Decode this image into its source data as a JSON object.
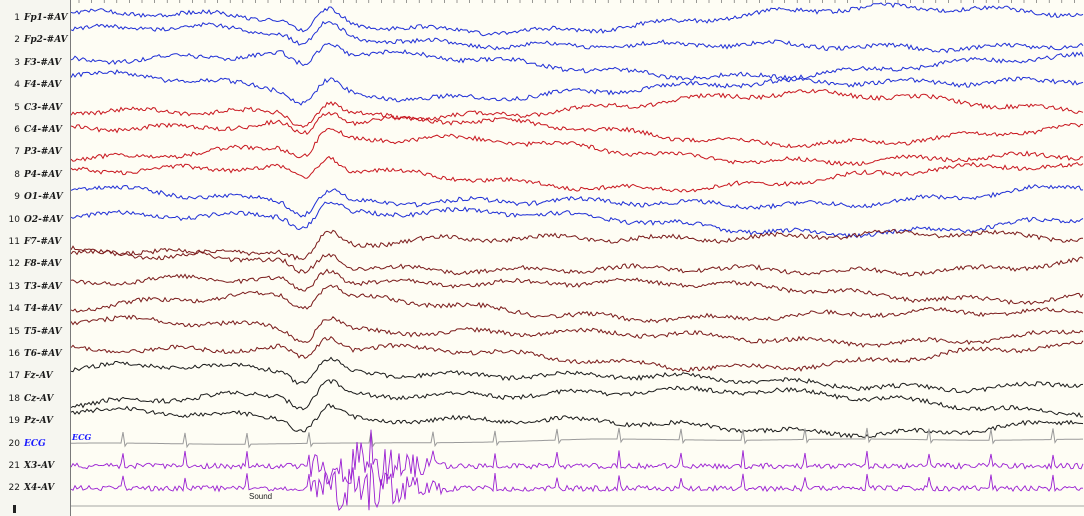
{
  "channels": [
    {
      "num": "1",
      "label": "Fp1-#AV",
      "color": "#1f2fd6"
    },
    {
      "num": "2",
      "label": "Fp2-#AV",
      "color": "#1f2fd6"
    },
    {
      "num": "3",
      "label": "F3-#AV",
      "color": "#1f2fd6"
    },
    {
      "num": "4",
      "label": "F4-#AV",
      "color": "#1f2fd6"
    },
    {
      "num": "5",
      "label": "C3-#AV",
      "color": "#c8161e"
    },
    {
      "num": "6",
      "label": "C4-#AV",
      "color": "#c8161e"
    },
    {
      "num": "7",
      "label": "P3-#AV",
      "color": "#c8161e"
    },
    {
      "num": "8",
      "label": "P4-#AV",
      "color": "#c8161e"
    },
    {
      "num": "9",
      "label": "O1-#AV",
      "color": "#1f2fd6"
    },
    {
      "num": "10",
      "label": "O2-#AV",
      "color": "#1f2fd6"
    },
    {
      "num": "11",
      "label": "F7-#AV",
      "color": "#7a1a1a"
    },
    {
      "num": "12",
      "label": "F8-#AV",
      "color": "#7a1a1a"
    },
    {
      "num": "13",
      "label": "T3-#AV",
      "color": "#7a1a1a"
    },
    {
      "num": "14",
      "label": "T4-#AV",
      "color": "#7a1a1a"
    },
    {
      "num": "15",
      "label": "T5-#AV",
      "color": "#7a1a1a"
    },
    {
      "num": "16",
      "label": "T6-#AV",
      "color": "#7a1a1a"
    },
    {
      "num": "17",
      "label": "Fz-AV",
      "color": "#1a1a1a"
    },
    {
      "num": "18",
      "label": "Cz-AV",
      "color": "#1a1a1a"
    },
    {
      "num": "19",
      "label": "Pz-AV",
      "color": "#1a1a1a"
    },
    {
      "num": "20",
      "label": "ECG",
      "color": "#9a9a9a",
      "label_color": "#1a1aff"
    },
    {
      "num": "21",
      "label": "X3-AV",
      "color": "#9a1fd2"
    },
    {
      "num": "22",
      "label": "X4-AV",
      "color": "#9a1fd2"
    }
  ],
  "annotations": {
    "ecg_tag": "ECG",
    "sound_tag": "Sound"
  }
}
